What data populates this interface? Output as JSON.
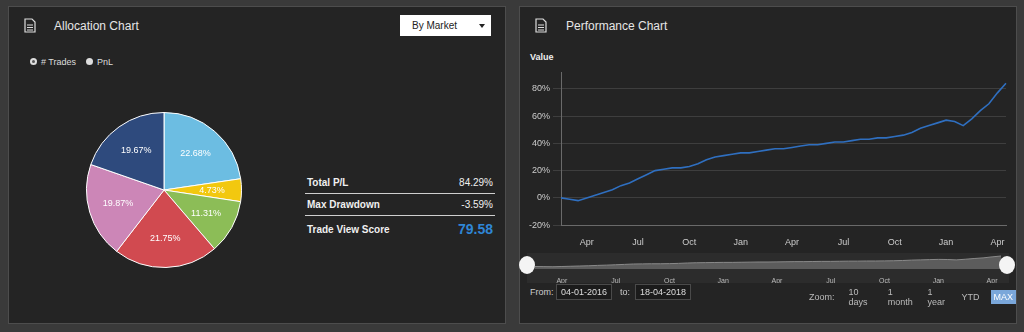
{
  "allocation_panel": {
    "title": "Allocation Chart",
    "dropdown": "By Market",
    "radio_options": [
      {
        "label": "# Trades",
        "selected": true
      },
      {
        "label": "PnL",
        "selected": false
      }
    ],
    "stats": [
      {
        "label": "Total P/L",
        "value": "84.29%"
      },
      {
        "label": "Max Drawdown",
        "value": "-3.59%"
      },
      {
        "label": "Trade View Score",
        "value": "79.58"
      }
    ]
  },
  "performance_panel": {
    "title": "Performance Chart",
    "range": {
      "from_label": "From:",
      "from": "04-01-2016",
      "to_label": "to:",
      "to": "18-04-2018"
    },
    "zoom": {
      "label": "Zoom:",
      "options": [
        "10 days",
        "1 month",
        "1 year",
        "YTD",
        "MAX"
      ],
      "selected": "MAX"
    }
  },
  "chart_data": [
    {
      "type": "pie",
      "values": [
        22.68,
        4.73,
        11.31,
        21.75,
        19.87,
        19.67
      ],
      "value_labels": [
        "22.68%",
        "4.73%",
        "11.31%",
        "21.75%",
        "19.87%",
        "19.67%"
      ],
      "colors": [
        "#6cbde2",
        "#f2c80f",
        "#8cbd57",
        "#d14a50",
        "#cc86b7",
        "#2e4a7d"
      ],
      "data_labels": true
    },
    {
      "type": "line",
      "ylabel": "Value",
      "categories": [
        null,
        null,
        null,
        "Apr",
        null,
        null,
        null,
        null,
        null,
        "Jul",
        null,
        null,
        null,
        null,
        null,
        "Oct",
        null,
        null,
        null,
        null,
        null,
        "Jan",
        null,
        null,
        null,
        null,
        null,
        "Apr",
        null,
        null,
        null,
        null,
        null,
        "Jul",
        null,
        null,
        null,
        null,
        null,
        "Oct",
        null,
        null,
        null,
        null,
        null,
        "Jan",
        null,
        null,
        null,
        null,
        null,
        "Apr",
        null
      ],
      "values": [
        0,
        -1,
        -2,
        0,
        2,
        4,
        6,
        9,
        11,
        14,
        17,
        20,
        21,
        22,
        22,
        23,
        25,
        28,
        30,
        31,
        32,
        33,
        33,
        34,
        35,
        36,
        36,
        37,
        38,
        39,
        39,
        40,
        41,
        41,
        42,
        43,
        43,
        44,
        44,
        45,
        46,
        48,
        51,
        53,
        55,
        57,
        56,
        53,
        58,
        64,
        69,
        77,
        84
      ],
      "color": "#2f6fc0",
      "ylim": [
        -20,
        92
      ],
      "yticks": [
        {
          "value": -20,
          "label": "-20%"
        },
        {
          "value": 0,
          "label": "0%"
        },
        {
          "value": 20,
          "label": "20%"
        },
        {
          "value": 40,
          "label": "40%"
        },
        {
          "value": 60,
          "label": "60%"
        },
        {
          "value": 80,
          "label": "80%"
        }
      ],
      "grid": true
    }
  ]
}
